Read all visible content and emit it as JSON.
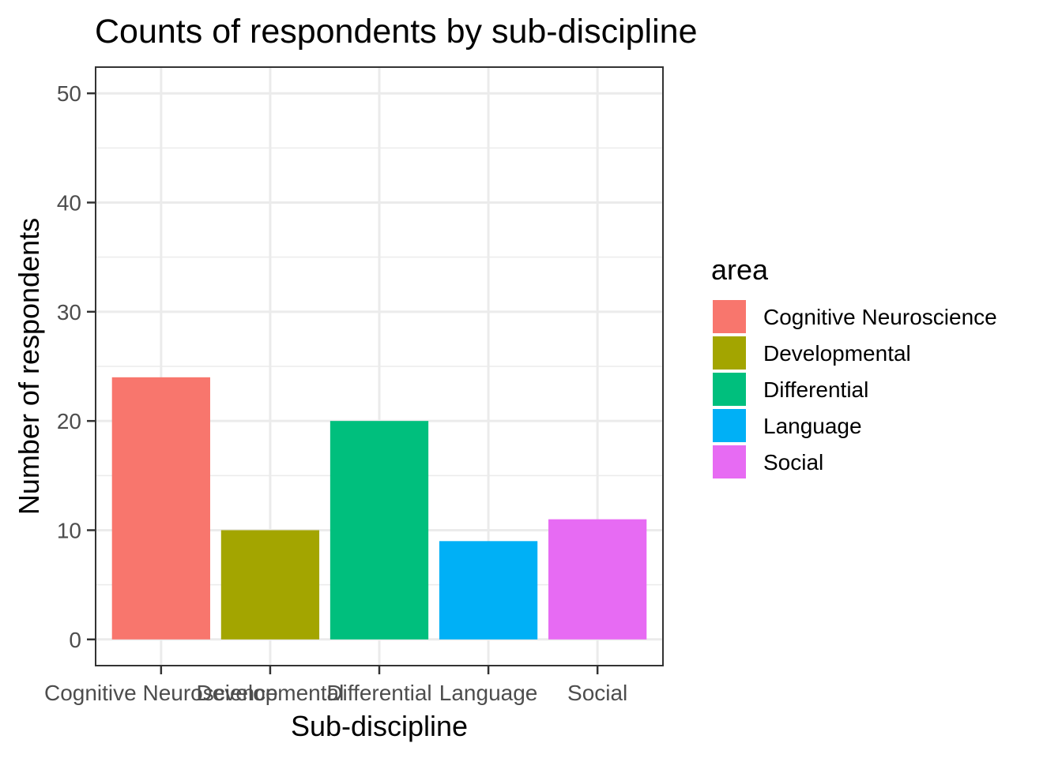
{
  "chart_data": {
    "type": "bar",
    "title": "Counts of respondents by sub-discipline",
    "xlabel": "Sub-discipline",
    "ylabel": "Number of respondents",
    "categories": [
      "Cognitive Neuroscience",
      "Developmental",
      "Differential",
      "Language",
      "Social"
    ],
    "values": [
      24,
      10,
      20,
      9,
      11
    ],
    "colors": [
      "#F8766D",
      "#A3A500",
      "#00BF7D",
      "#00B0F6",
      "#E76BF3"
    ],
    "ylim": [
      -2.4,
      52.4
    ],
    "yticks": [
      0,
      10,
      20,
      30,
      40,
      50
    ],
    "yticks_minor": [
      5,
      15,
      25,
      35,
      45
    ],
    "grid": true,
    "legend": {
      "title": "area",
      "position": "right",
      "entries": [
        "Cognitive Neuroscience",
        "Developmental",
        "Differential",
        "Language",
        "Social"
      ]
    }
  }
}
